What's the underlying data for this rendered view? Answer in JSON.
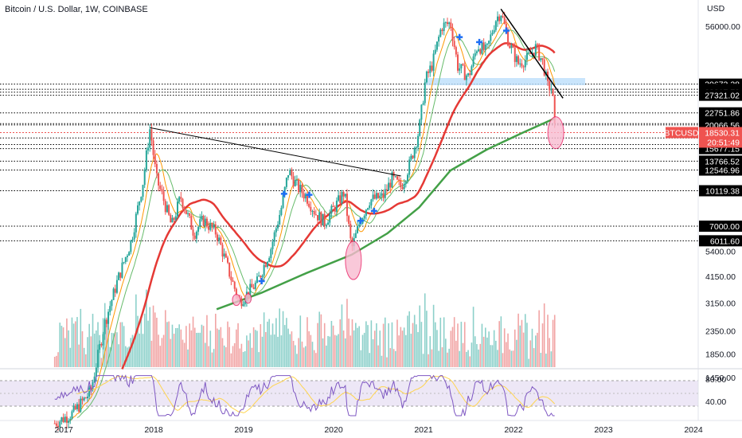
{
  "header": {
    "title": "Bitcoin / U.S. Dollar, 1W, COINBASE",
    "currency": "USD"
  },
  "colors": {
    "up": "#26a69a",
    "down": "#ef5350",
    "ma_red": "#e53935",
    "ma_green": "#43a047",
    "ma_orange": "#ff9800",
    "ma_lightgreen": "#66bb6a",
    "trendline": "#000000",
    "rsi_line": "#7e57c2",
    "rsi_ma": "#ffd54f",
    "rsi_band": "#ede7f6",
    "tag_bg": "#000000",
    "price_tag_bg": "#ef5350",
    "circle_fill": "#f8bbd0",
    "circle_stroke": "#e91e63",
    "zone": "#bbdefb",
    "cross": "#1e6ff5"
  },
  "chart_data": {
    "type": "candlestick",
    "x_axis_labels": [
      "2017",
      "2018",
      "2019",
      "2020",
      "2021",
      "2022",
      "2023",
      "2024"
    ],
    "y_axis_labels": [
      "56000.00",
      "5400.00",
      "4150.00",
      "3150.00",
      "2350.00",
      "1850.00",
      "1450.00"
    ],
    "y_scale": "log",
    "horizontal_levels": [
      "30673.38",
      "29063.23",
      "28217.78",
      "27321.02",
      "22751.86",
      "20330.90",
      "20066.56",
      "17525.93",
      "16368.24",
      "15677.15",
      "13766.52",
      "12546.96",
      "10119.38",
      "7000.00",
      "6011.60"
    ],
    "last_price": {
      "symbol": "BTCUSD",
      "value": "18530.31",
      "countdown": "20:51:49"
    },
    "rsi_labels": [
      "80.00",
      "40.00"
    ],
    "price_series": [
      {
        "date": 2016.9,
        "close": 900
      },
      {
        "date": 2017.1,
        "close": 1000
      },
      {
        "date": 2017.3,
        "close": 1250
      },
      {
        "date": 2017.45,
        "close": 2500
      },
      {
        "date": 2017.6,
        "close": 4000
      },
      {
        "date": 2017.75,
        "close": 6000
      },
      {
        "date": 2017.88,
        "close": 11000
      },
      {
        "date": 2017.96,
        "close": 19500
      },
      {
        "date": 2018.03,
        "close": 11500
      },
      {
        "date": 2018.1,
        "close": 9500
      },
      {
        "date": 2018.2,
        "close": 7000
      },
      {
        "date": 2018.3,
        "close": 9500
      },
      {
        "date": 2018.45,
        "close": 6500
      },
      {
        "date": 2018.55,
        "close": 7500
      },
      {
        "date": 2018.7,
        "close": 6500
      },
      {
        "date": 2018.85,
        "close": 4200
      },
      {
        "date": 2018.95,
        "close": 3200
      },
      {
        "date": 2019.05,
        "close": 3500
      },
      {
        "date": 2019.15,
        "close": 3900
      },
      {
        "date": 2019.3,
        "close": 5500
      },
      {
        "date": 2019.42,
        "close": 8500
      },
      {
        "date": 2019.5,
        "close": 12500
      },
      {
        "date": 2019.6,
        "close": 10500
      },
      {
        "date": 2019.7,
        "close": 9500
      },
      {
        "date": 2019.8,
        "close": 8000
      },
      {
        "date": 2019.9,
        "close": 7300
      },
      {
        "date": 2020.05,
        "close": 9000
      },
      {
        "date": 2020.12,
        "close": 10000
      },
      {
        "date": 2020.2,
        "close": 5500
      },
      {
        "date": 2020.3,
        "close": 7500
      },
      {
        "date": 2020.4,
        "close": 9200
      },
      {
        "date": 2020.55,
        "close": 9500
      },
      {
        "date": 2020.65,
        "close": 11500
      },
      {
        "date": 2020.75,
        "close": 10500
      },
      {
        "date": 2020.85,
        "close": 13500
      },
      {
        "date": 2020.95,
        "close": 19000
      },
      {
        "date": 2021.02,
        "close": 32000
      },
      {
        "date": 2021.1,
        "close": 38000
      },
      {
        "date": 2021.2,
        "close": 56000
      },
      {
        "date": 2021.3,
        "close": 58000
      },
      {
        "date": 2021.38,
        "close": 37000
      },
      {
        "date": 2021.5,
        "close": 33000
      },
      {
        "date": 2021.6,
        "close": 46000
      },
      {
        "date": 2021.7,
        "close": 43000
      },
      {
        "date": 2021.8,
        "close": 60000
      },
      {
        "date": 2021.86,
        "close": 65000
      },
      {
        "date": 2021.95,
        "close": 47000
      },
      {
        "date": 2022.05,
        "close": 38000
      },
      {
        "date": 2022.15,
        "close": 40000
      },
      {
        "date": 2022.25,
        "close": 45000
      },
      {
        "date": 2022.33,
        "close": 38000
      },
      {
        "date": 2022.38,
        "close": 30000
      },
      {
        "date": 2022.43,
        "close": 29500
      },
      {
        "date": 2022.46,
        "close": 18530
      }
    ]
  }
}
